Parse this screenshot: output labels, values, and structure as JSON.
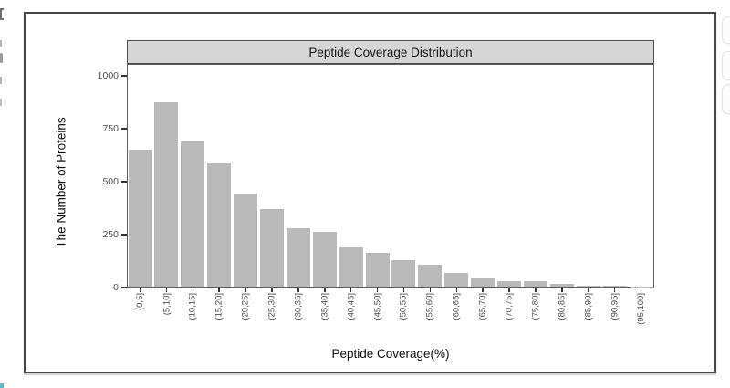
{
  "chart": {
    "strip_title": "Peptide Coverage Distribution",
    "x_label": "Peptide Coverage(%)",
    "y_label": "The Number of Proteins",
    "colors": {
      "bar": "#b9b9b9",
      "strip_bg": "#d6d6d6",
      "strip_border": "#4a4a4a",
      "panel_border": "#5c5c5c",
      "axis_text": "#4d4d4d"
    }
  },
  "chart_data": {
    "type": "bar",
    "title": "Peptide Coverage Distribution",
    "xlabel": "Peptide Coverage(%)",
    "ylabel": "The Number of Proteins",
    "categories": [
      "(0,5]",
      "(5,10]",
      "(10,15]",
      "(15,20]",
      "(20,25]",
      "(25,30]",
      "(30,35]",
      "(35,40]",
      "(40,45]",
      "(45,50]",
      "(50,55]",
      "(55,60]",
      "(60,65]",
      "(65,70]",
      "(70,75]",
      "(75,80]",
      "(80,85]",
      "(85,90]",
      "(90,95]",
      "(95,100]"
    ],
    "values": [
      645,
      870,
      690,
      580,
      440,
      365,
      275,
      260,
      185,
      160,
      125,
      105,
      65,
      42,
      28,
      24,
      12,
      5,
      3,
      2
    ],
    "yticks": [
      0,
      250,
      500,
      750,
      1000
    ],
    "ylim": [
      0,
      1050
    ],
    "grid": false,
    "legend": false,
    "bar_color": "#b9b9b9"
  }
}
